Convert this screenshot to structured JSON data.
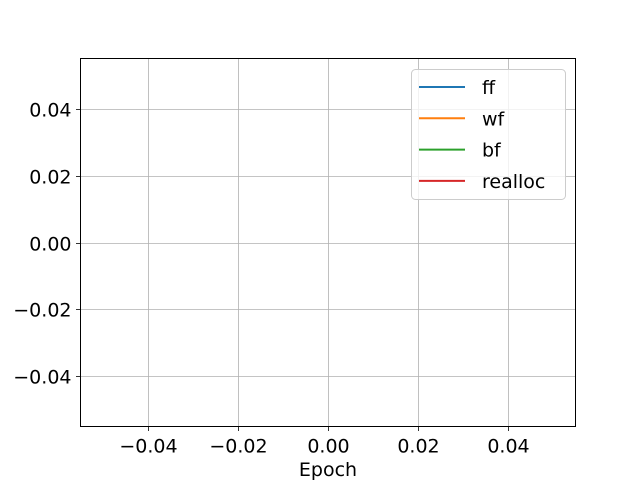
{
  "chart_data": {
    "type": "line",
    "title": "",
    "xlabel": "Epoch",
    "ylabel": "",
    "xlim": [
      -0.055,
      0.055
    ],
    "ylim": [
      -0.055,
      0.055
    ],
    "x_ticks": [
      -0.04,
      -0.02,
      0.0,
      0.02,
      0.04
    ],
    "y_ticks": [
      -0.04,
      -0.02,
      0.0,
      0.02,
      0.04
    ],
    "x_tick_labels": [
      "−0.04",
      "−0.02",
      "0.00",
      "0.02",
      "0.04"
    ],
    "y_tick_labels": [
      "−0.04",
      "−0.02",
      "0.00",
      "0.02",
      "0.04"
    ],
    "grid": true,
    "legend_position": "top-right",
    "series": [
      {
        "name": "ff",
        "color": "#1f77b4",
        "x": [],
        "y": []
      },
      {
        "name": "wf",
        "color": "#ff7f0e",
        "x": [],
        "y": []
      },
      {
        "name": "bf",
        "color": "#2ca02c",
        "x": [],
        "y": []
      },
      {
        "name": "realloc",
        "color": "#d62728",
        "x": [],
        "y": []
      }
    ]
  }
}
